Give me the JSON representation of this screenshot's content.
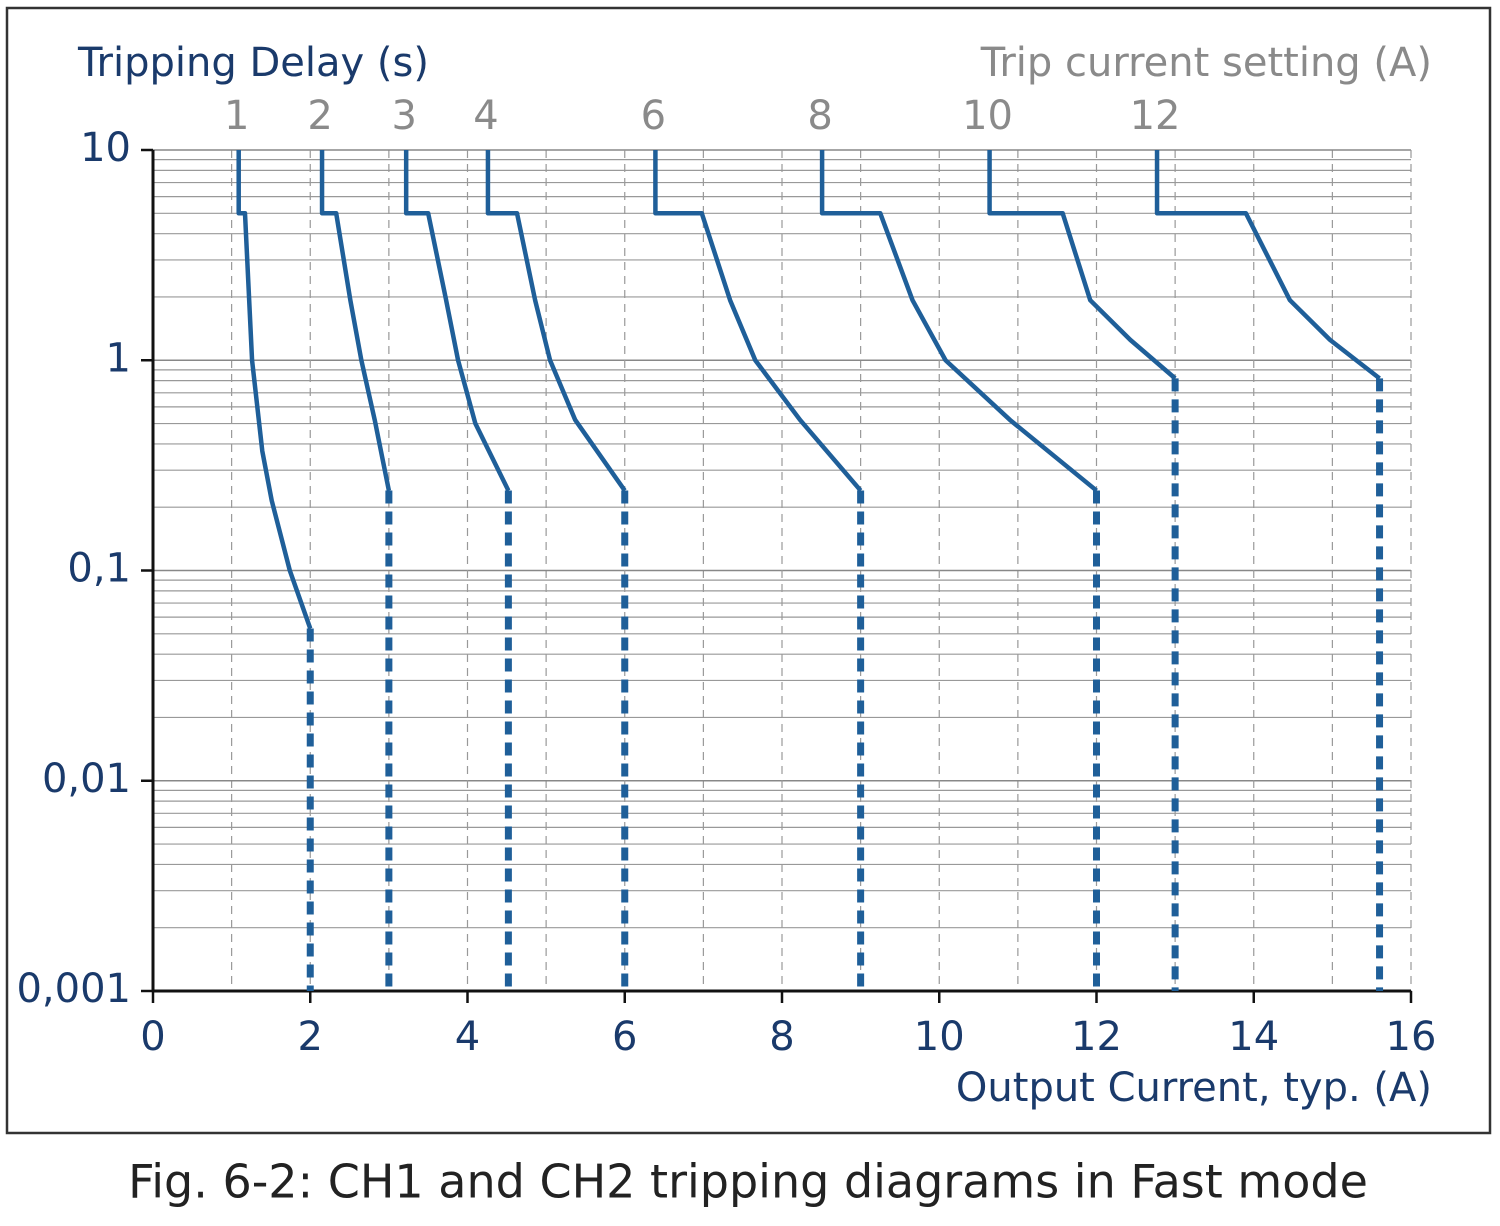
{
  "chart_data": {
    "type": "line",
    "title": "Fig. 6-2: CH1 and CH2 tripping diagrams in Fast mode",
    "y_label": "Tripping Delay (s)",
    "x_label": "Output Current, typ. (A)",
    "legend_title": "Trip current setting (A)",
    "y_scale": "log",
    "grid": true,
    "xlim": [
      0,
      16
    ],
    "xticks": [
      0,
      2,
      4,
      6,
      8,
      10,
      12,
      14,
      16
    ],
    "ylim": [
      0.001,
      10
    ],
    "yticks": [
      {
        "value": 0.001,
        "label": "0,001"
      },
      {
        "value": 0.01,
        "label": "0,01"
      },
      {
        "value": 0.1,
        "label": "0,1"
      },
      1,
      10
    ],
    "series": [
      {
        "name": "1",
        "color": "#1f5f99",
        "x": [
          1.09,
          1.09,
          1.17,
          1.26,
          1.39,
          1.51,
          1.74,
          2.0
        ],
        "values": [
          10,
          5,
          5,
          1,
          0.37,
          0.215,
          0.1,
          0.053
        ]
      },
      {
        "color": "#1f5f99",
        "style": "dotted",
        "x": [
          2.0,
          2.0
        ],
        "values": [
          0.053,
          0.001
        ]
      },
      {
        "name": "2",
        "color": "#1f5f99",
        "x": [
          2.15,
          2.15,
          2.33,
          2.51,
          2.65,
          2.82,
          3.0
        ],
        "values": [
          10,
          5,
          5,
          1.93,
          1,
          0.52,
          0.24
        ]
      },
      {
        "color": "#1f5f99",
        "style": "dotted",
        "x": [
          3.0,
          3.0
        ],
        "values": [
          0.24,
          0.001
        ]
      },
      {
        "name": "3",
        "color": "#1f5f99",
        "x": [
          3.22,
          3.22,
          3.5,
          3.72,
          3.88,
          4.1,
          4.52
        ],
        "values": [
          10,
          5,
          5,
          2,
          1,
          0.5,
          0.24
        ]
      },
      {
        "color": "#1f5f99",
        "style": "dotted",
        "x": [
          4.52,
          4.52
        ],
        "values": [
          0.24,
          0.001
        ]
      },
      {
        "name": "4",
        "color": "#1f5f99",
        "x": [
          4.26,
          4.26,
          4.63,
          4.86,
          5.05,
          5.37,
          6.0
        ],
        "values": [
          10,
          5,
          5,
          1.93,
          1,
          0.52,
          0.24
        ]
      },
      {
        "color": "#1f5f99",
        "style": "dotted",
        "x": [
          6.0,
          6.0
        ],
        "values": [
          0.24,
          0.001
        ]
      },
      {
        "name": "6",
        "color": "#1f5f99",
        "x": [
          6.39,
          6.39,
          6.98,
          7.34,
          7.66,
          8.23,
          9.0
        ],
        "values": [
          10,
          5,
          5,
          1.93,
          1,
          0.52,
          0.24
        ]
      },
      {
        "color": "#1f5f99",
        "style": "dotted",
        "x": [
          9.0,
          9.0
        ],
        "values": [
          0.24,
          0.001
        ]
      },
      {
        "name": "8",
        "color": "#1f5f99",
        "x": [
          8.51,
          8.51,
          9.25,
          9.66,
          10.08,
          10.9,
          12.0
        ],
        "values": [
          10,
          5,
          5,
          1.93,
          1,
          0.52,
          0.24
        ]
      },
      {
        "color": "#1f5f99",
        "style": "dotted",
        "x": [
          12.0,
          12.0
        ],
        "values": [
          0.24,
          0.001
        ]
      },
      {
        "name": "10",
        "color": "#1f5f99",
        "x": [
          10.64,
          10.64,
          11.57,
          11.92,
          12.43,
          13.0
        ],
        "values": [
          10,
          5,
          5,
          1.93,
          1.25,
          0.82
        ]
      },
      {
        "color": "#1f5f99",
        "style": "dotted",
        "x": [
          13.0,
          13.0
        ],
        "values": [
          0.82,
          0.001
        ]
      },
      {
        "name": "12",
        "color": "#1f5f99",
        "x": [
          12.77,
          12.77,
          13.9,
          14.46,
          14.97,
          15.6
        ],
        "values": [
          10,
          5,
          5,
          1.93,
          1.25,
          0.82
        ]
      },
      {
        "color": "#1f5f99",
        "style": "dotted",
        "x": [
          15.6,
          15.6
        ],
        "values": [
          0.82,
          0.001
        ]
      }
    ]
  }
}
